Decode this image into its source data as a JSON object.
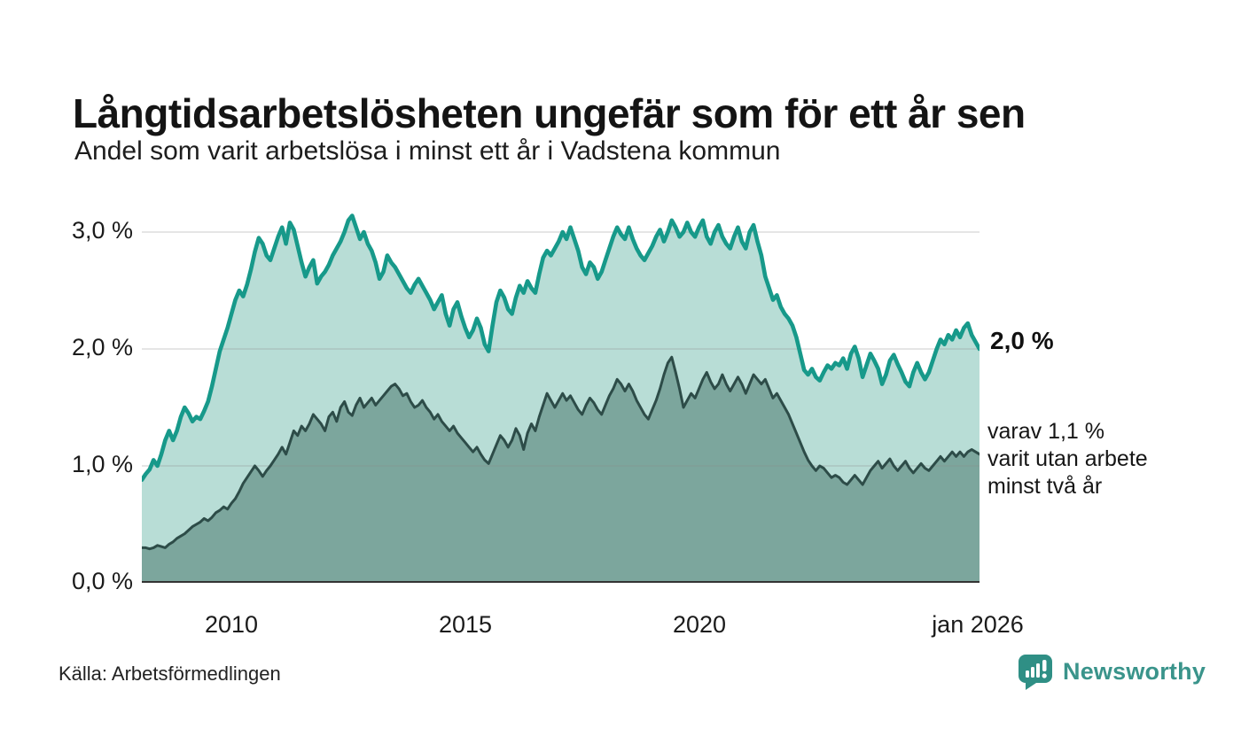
{
  "page": {
    "title": "Långtidsarbetslösheten ungefär som för ett år sen",
    "subtitle": "Andel som varit arbetslösa i minst ett år i Vadstena kommun",
    "source": "Källa: Arbetsförmedlingen",
    "brand": "Newsworthy"
  },
  "colors": {
    "accent_teal": "#17998a",
    "light_fill": "#b4dbd4",
    "dark_line": "#2d4c48",
    "dark_fill": "#7aa49b",
    "grid": "#8a8a8a",
    "axis": "#333333",
    "brand_teal": "#3a948b",
    "text": "#1a1a1a"
  },
  "annotations": {
    "latest_total": "2,0 %",
    "subset_lines": [
      "varav 1,1 %",
      "varit utan arbete",
      "minst två år"
    ]
  },
  "chart_data": {
    "type": "area",
    "title": "Långtidsarbetslösheten ungefär som för ett år sen",
    "subtitle": "Andel som varit arbetslösa i minst ett år i Vadstena kommun",
    "unit": "%",
    "frequency": "monthly",
    "start": {
      "year": 2008,
      "month": 2
    },
    "end": {
      "year": 2026,
      "month": 1
    },
    "ylim": [
      0,
      3.24
    ],
    "grid": true,
    "y_tick_values": [
      0,
      1,
      2,
      3
    ],
    "y_tick_labels": [
      "0,0 %",
      "1,0 %",
      "2,0 %",
      "3,0 %"
    ],
    "x_tick_labels": [
      "2010",
      "2015",
      "2020",
      "jan 2026"
    ],
    "latest": {
      "total_pct": 2.0,
      "subset_pct": 1.1
    },
    "series": [
      {
        "name": "Andel arbetslösa minst ett år",
        "color": "#17998a",
        "fill": "#b4dbd4",
        "values": [
          0.88,
          0.93,
          0.97,
          1.05,
          1.0,
          1.1,
          1.22,
          1.3,
          1.22,
          1.3,
          1.42,
          1.5,
          1.45,
          1.38,
          1.42,
          1.4,
          1.47,
          1.55,
          1.68,
          1.83,
          1.98,
          2.08,
          2.18,
          2.3,
          2.42,
          2.5,
          2.45,
          2.55,
          2.68,
          2.83,
          2.95,
          2.9,
          2.8,
          2.76,
          2.86,
          2.96,
          3.04,
          2.9,
          3.08,
          3.02,
          2.88,
          2.74,
          2.62,
          2.7,
          2.76,
          2.56,
          2.62,
          2.66,
          2.72,
          2.8,
          2.86,
          2.92,
          3.0,
          3.1,
          3.14,
          3.04,
          2.94,
          3.0,
          2.9,
          2.84,
          2.74,
          2.6,
          2.66,
          2.8,
          2.74,
          2.7,
          2.64,
          2.58,
          2.52,
          2.48,
          2.55,
          2.6,
          2.54,
          2.48,
          2.42,
          2.34,
          2.4,
          2.46,
          2.3,
          2.2,
          2.34,
          2.4,
          2.28,
          2.18,
          2.1,
          2.16,
          2.26,
          2.18,
          2.04,
          1.98,
          2.2,
          2.4,
          2.5,
          2.44,
          2.34,
          2.3,
          2.44,
          2.54,
          2.48,
          2.58,
          2.52,
          2.48,
          2.64,
          2.78,
          2.84,
          2.8,
          2.86,
          2.92,
          3.0,
          2.94,
          3.04,
          2.94,
          2.84,
          2.7,
          2.64,
          2.74,
          2.7,
          2.6,
          2.66,
          2.76,
          2.86,
          2.96,
          3.04,
          2.98,
          2.94,
          3.04,
          2.94,
          2.86,
          2.8,
          2.76,
          2.82,
          2.88,
          2.96,
          3.02,
          2.92,
          3.0,
          3.1,
          3.04,
          2.96,
          3.0,
          3.08,
          3.0,
          2.96,
          3.04,
          3.1,
          2.96,
          2.9,
          3.0,
          3.06,
          2.96,
          2.9,
          2.86,
          2.96,
          3.04,
          2.92,
          2.86,
          3.0,
          3.06,
          2.92,
          2.8,
          2.62,
          2.52,
          2.42,
          2.46,
          2.36,
          2.3,
          2.26,
          2.2,
          2.1,
          1.96,
          1.82,
          1.78,
          1.83,
          1.76,
          1.73,
          1.8,
          1.86,
          1.83,
          1.88,
          1.86,
          1.92,
          1.83,
          1.96,
          2.02,
          1.92,
          1.76,
          1.86,
          1.96,
          1.9,
          1.83,
          1.7,
          1.78,
          1.9,
          1.95,
          1.87,
          1.8,
          1.72,
          1.68,
          1.8,
          1.88,
          1.8,
          1.74,
          1.8,
          1.9,
          2.0,
          2.08,
          2.04,
          2.12,
          2.08,
          2.16,
          2.1,
          2.18,
          2.22,
          2.12,
          2.06,
          2.0
        ]
      },
      {
        "name": "varav utan arbete minst två år",
        "color": "#2d4c48",
        "fill": "#7aa49b",
        "values": [
          0.3,
          0.3,
          0.29,
          0.3,
          0.32,
          0.31,
          0.3,
          0.33,
          0.35,
          0.38,
          0.4,
          0.42,
          0.45,
          0.48,
          0.5,
          0.52,
          0.55,
          0.53,
          0.56,
          0.6,
          0.62,
          0.65,
          0.63,
          0.68,
          0.72,
          0.78,
          0.85,
          0.9,
          0.95,
          1.0,
          0.96,
          0.91,
          0.96,
          1.0,
          1.05,
          1.1,
          1.16,
          1.1,
          1.2,
          1.3,
          1.26,
          1.34,
          1.3,
          1.36,
          1.44,
          1.4,
          1.36,
          1.3,
          1.42,
          1.46,
          1.38,
          1.5,
          1.55,
          1.46,
          1.43,
          1.52,
          1.58,
          1.5,
          1.54,
          1.58,
          1.52,
          1.56,
          1.6,
          1.64,
          1.68,
          1.7,
          1.66,
          1.6,
          1.62,
          1.55,
          1.5,
          1.52,
          1.56,
          1.5,
          1.46,
          1.4,
          1.44,
          1.38,
          1.34,
          1.3,
          1.34,
          1.28,
          1.24,
          1.2,
          1.16,
          1.12,
          1.16,
          1.1,
          1.05,
          1.02,
          1.1,
          1.18,
          1.26,
          1.22,
          1.16,
          1.22,
          1.32,
          1.26,
          1.14,
          1.28,
          1.36,
          1.3,
          1.42,
          1.52,
          1.62,
          1.56,
          1.5,
          1.56,
          1.62,
          1.56,
          1.6,
          1.54,
          1.48,
          1.44,
          1.52,
          1.58,
          1.54,
          1.48,
          1.44,
          1.52,
          1.6,
          1.66,
          1.74,
          1.7,
          1.64,
          1.7,
          1.64,
          1.56,
          1.5,
          1.44,
          1.4,
          1.48,
          1.56,
          1.66,
          1.78,
          1.88,
          1.93,
          1.8,
          1.66,
          1.5,
          1.56,
          1.62,
          1.58,
          1.66,
          1.74,
          1.8,
          1.72,
          1.66,
          1.7,
          1.78,
          1.7,
          1.64,
          1.7,
          1.76,
          1.7,
          1.62,
          1.7,
          1.78,
          1.74,
          1.7,
          1.74,
          1.66,
          1.58,
          1.62,
          1.56,
          1.5,
          1.44,
          1.36,
          1.28,
          1.2,
          1.12,
          1.05,
          1.0,
          0.96,
          1.0,
          0.98,
          0.94,
          0.9,
          0.92,
          0.9,
          0.86,
          0.84,
          0.88,
          0.92,
          0.88,
          0.84,
          0.9,
          0.96,
          1.0,
          1.04,
          0.98,
          1.02,
          1.06,
          1.0,
          0.96,
          1.0,
          1.04,
          0.98,
          0.94,
          0.98,
          1.02,
          0.98,
          0.96,
          1.0,
          1.04,
          1.08,
          1.04,
          1.08,
          1.12,
          1.08,
          1.12,
          1.08,
          1.12,
          1.14,
          1.12,
          1.1
        ]
      }
    ]
  }
}
